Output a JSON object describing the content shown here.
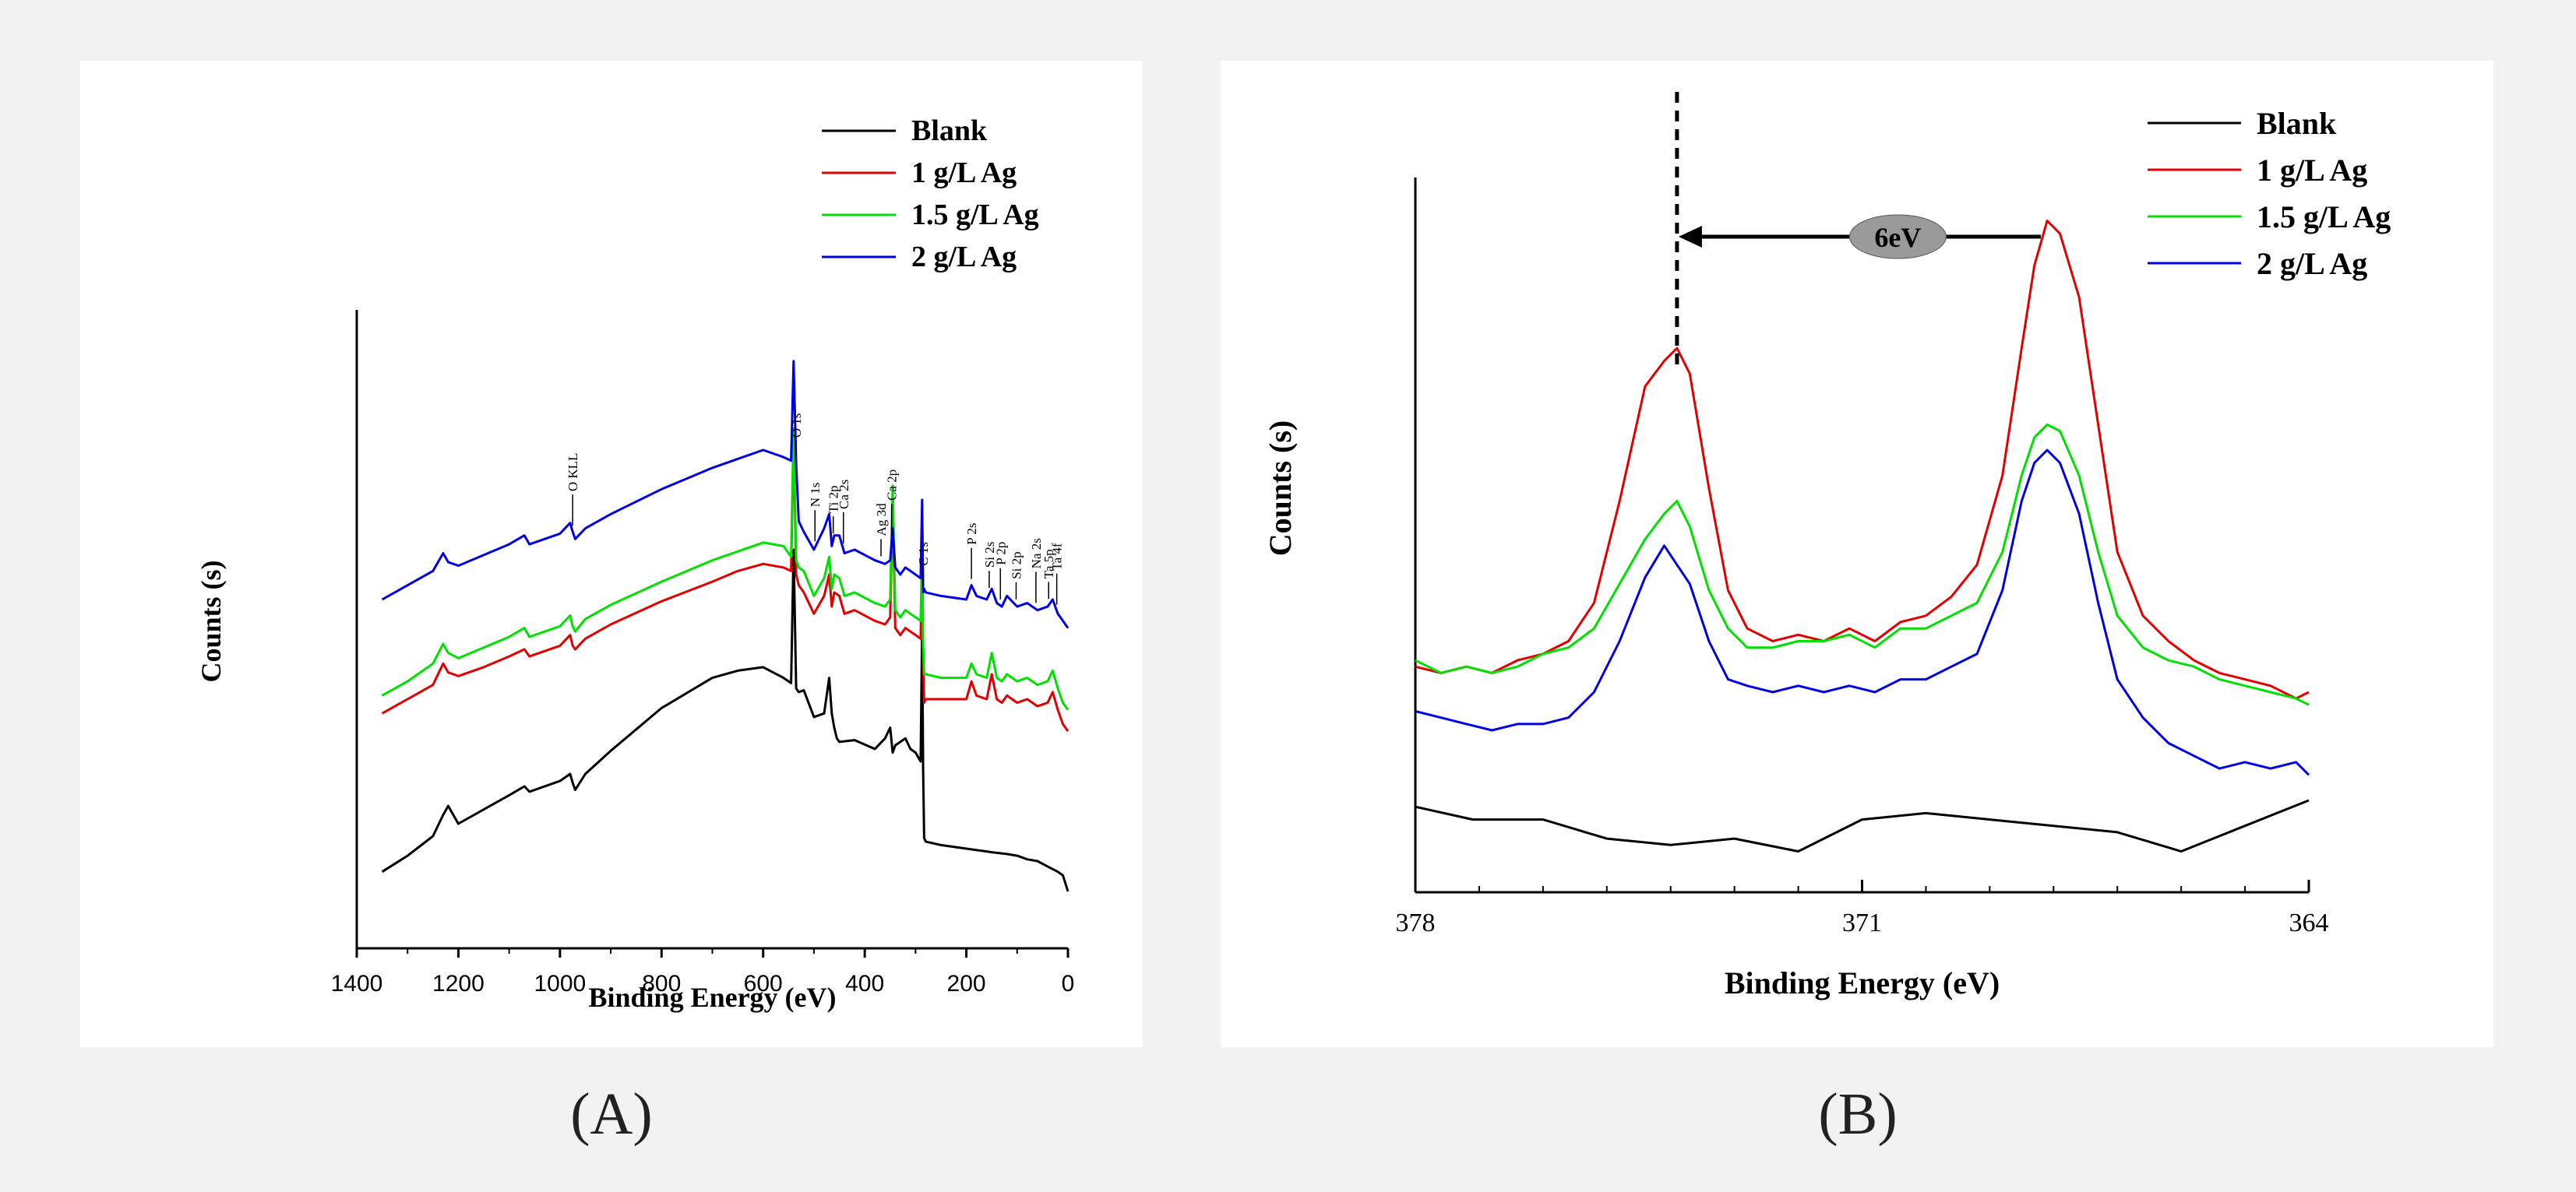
{
  "captions": {
    "a": "(A)",
    "b": "(B)"
  },
  "chart_data": [
    {
      "id": "A",
      "type": "line",
      "title": "",
      "xlabel": "Binding Energy (eV)",
      "ylabel": "Counts (s)",
      "xlim": [
        1400,
        0
      ],
      "xticks": [
        "1400",
        "1200",
        "1000",
        "800",
        "600",
        "400",
        "200",
        "0"
      ],
      "legend_position": "top-right",
      "series": [
        {
          "name": "Blank",
          "color": "#000000",
          "x": [
            1350,
            1300,
            1250,
            1230,
            1220,
            1200,
            1150,
            1100,
            1070,
            1060,
            1000,
            980,
            975,
            970,
            950,
            900,
            800,
            700,
            650,
            600,
            560,
            545,
            540,
            535,
            530,
            520,
            500,
            480,
            470,
            465,
            460,
            455,
            450,
            420,
            380,
            360,
            350,
            345,
            340,
            330,
            320,
            310,
            300,
            290,
            287,
            285,
            283,
            280,
            250,
            200,
            150,
            120,
            100,
            80,
            60,
            40,
            20,
            10,
            0
          ],
          "y": [
            0.215,
            0.26,
            0.315,
            0.375,
            0.4,
            0.35,
            0.39,
            0.43,
            0.455,
            0.44,
            0.47,
            0.49,
            0.465,
            0.445,
            0.49,
            0.555,
            0.675,
            0.76,
            0.78,
            0.79,
            0.76,
            0.745,
            1.12,
            0.73,
            0.72,
            0.725,
            0.65,
            0.66,
            0.76,
            0.66,
            0.62,
            0.59,
            0.58,
            0.585,
            0.56,
            0.59,
            0.62,
            0.55,
            0.57,
            0.58,
            0.59,
            0.56,
            0.55,
            0.525,
            0.9,
            0.5,
            0.31,
            0.3,
            0.29,
            0.28,
            0.27,
            0.265,
            0.26,
            0.25,
            0.245,
            0.23,
            0.215,
            0.205,
            0.16
          ]
        },
        {
          "name": "1 g/L Ag",
          "color": "#e00000",
          "x": [
            1350,
            1300,
            1250,
            1230,
            1220,
            1200,
            1150,
            1100,
            1070,
            1060,
            1000,
            980,
            975,
            970,
            950,
            900,
            800,
            700,
            650,
            600,
            560,
            545,
            540,
            535,
            530,
            520,
            500,
            480,
            470,
            465,
            460,
            450,
            440,
            420,
            380,
            360,
            350,
            345,
            340,
            330,
            320,
            310,
            300,
            290,
            287,
            285,
            283,
            280,
            250,
            200,
            190,
            180,
            160,
            150,
            140,
            130,
            120,
            100,
            80,
            60,
            40,
            30,
            20,
            10,
            0
          ],
          "y": [
            0.66,
            0.7,
            0.74,
            0.8,
            0.775,
            0.765,
            0.79,
            0.82,
            0.84,
            0.82,
            0.85,
            0.88,
            0.85,
            0.84,
            0.87,
            0.91,
            0.975,
            1.03,
            1.06,
            1.08,
            1.07,
            1.06,
            1.44,
            1.05,
            1.02,
            1.0,
            0.94,
            0.99,
            1.05,
            0.96,
            1.0,
            0.99,
            0.94,
            0.95,
            0.92,
            0.91,
            0.93,
            1.26,
            0.9,
            0.88,
            0.9,
            0.89,
            0.88,
            0.87,
            1.1,
            0.82,
            0.69,
            0.7,
            0.7,
            0.7,
            0.75,
            0.71,
            0.7,
            0.77,
            0.7,
            0.69,
            0.71,
            0.69,
            0.7,
            0.68,
            0.69,
            0.72,
            0.67,
            0.63,
            0.61
          ]
        },
        {
          "name": "1.5 g/L Ag",
          "color": "#00e000",
          "x": [
            1350,
            1300,
            1250,
            1230,
            1220,
            1200,
            1150,
            1100,
            1070,
            1060,
            1000,
            980,
            975,
            970,
            950,
            900,
            800,
            700,
            650,
            600,
            560,
            545,
            540,
            535,
            530,
            520,
            500,
            480,
            470,
            465,
            460,
            450,
            440,
            420,
            380,
            360,
            350,
            345,
            340,
            330,
            320,
            310,
            300,
            290,
            287,
            285,
            283,
            280,
            250,
            200,
            190,
            180,
            160,
            150,
            140,
            130,
            120,
            100,
            80,
            60,
            40,
            30,
            20,
            10,
            0
          ],
          "y": [
            0.71,
            0.75,
            0.8,
            0.855,
            0.83,
            0.815,
            0.845,
            0.875,
            0.9,
            0.875,
            0.905,
            0.935,
            0.905,
            0.89,
            0.925,
            0.965,
            1.03,
            1.09,
            1.115,
            1.14,
            1.13,
            1.1,
            1.46,
            1.09,
            1.07,
            1.06,
            0.99,
            1.04,
            1.1,
            1.01,
            1.05,
            1.04,
            0.99,
            1.0,
            0.97,
            0.96,
            0.98,
            1.3,
            0.95,
            0.93,
            0.95,
            0.94,
            0.93,
            0.92,
            1.14,
            0.85,
            0.77,
            0.77,
            0.76,
            0.76,
            0.8,
            0.77,
            0.76,
            0.83,
            0.76,
            0.75,
            0.77,
            0.75,
            0.76,
            0.74,
            0.75,
            0.78,
            0.73,
            0.69,
            0.67
          ]
        },
        {
          "name": "2 g/L Ag",
          "color": "#0000e0",
          "x": [
            1350,
            1300,
            1250,
            1230,
            1220,
            1200,
            1150,
            1100,
            1070,
            1060,
            1000,
            980,
            975,
            970,
            950,
            900,
            800,
            700,
            650,
            600,
            560,
            545,
            540,
            535,
            530,
            520,
            500,
            480,
            470,
            465,
            460,
            450,
            440,
            420,
            380,
            360,
            350,
            345,
            340,
            330,
            320,
            310,
            300,
            290,
            287,
            285,
            283,
            280,
            250,
            200,
            190,
            180,
            160,
            150,
            140,
            130,
            120,
            100,
            80,
            60,
            40,
            30,
            20,
            10,
            0
          ],
          "y": [
            0.98,
            1.02,
            1.06,
            1.11,
            1.085,
            1.075,
            1.105,
            1.135,
            1.16,
            1.135,
            1.165,
            1.195,
            1.17,
            1.15,
            1.18,
            1.22,
            1.29,
            1.35,
            1.375,
            1.4,
            1.38,
            1.37,
            1.65,
            1.36,
            1.2,
            1.17,
            1.12,
            1.18,
            1.22,
            1.13,
            1.16,
            1.16,
            1.11,
            1.12,
            1.09,
            1.08,
            1.09,
            1.18,
            1.07,
            1.05,
            1.07,
            1.06,
            1.05,
            1.04,
            1.26,
            1.0,
            1.01,
            1.0,
            0.99,
            0.98,
            1.02,
            0.99,
            0.98,
            1.01,
            0.97,
            0.96,
            0.99,
            0.96,
            0.97,
            0.95,
            0.96,
            0.98,
            0.94,
            0.92,
            0.9
          ]
        }
      ],
      "annotations": [
        {
          "text": "O KLL",
          "x": 975
        },
        {
          "text": "O 1s",
          "x": 535
        },
        {
          "text": "N 1s",
          "x": 498
        },
        {
          "text": "Ti 2p",
          "x": 462
        },
        {
          "text": "Ca 2s",
          "x": 442
        },
        {
          "text": "Ag 3d",
          "x": 368
        },
        {
          "text": "Ca 2p",
          "x": 347
        },
        {
          "text": "C 1s",
          "x": 285
        },
        {
          "text": "P 2s",
          "x": 190
        },
        {
          "text": "Si 2s",
          "x": 155
        },
        {
          "text": "P 2p",
          "x": 133
        },
        {
          "text": "Si 2p",
          "x": 102
        },
        {
          "text": "Na 2s",
          "x": 63
        },
        {
          "text": "Ta 5p",
          "x": 38
        },
        {
          "text": "Ta 4f",
          "x": 22
        }
      ]
    },
    {
      "id": "B",
      "type": "line",
      "title": "",
      "xlabel": "Binding Energy (eV)",
      "ylabel": "Counts (s)",
      "xlim": [
        378,
        364
      ],
      "xticks": [
        "378",
        "371",
        "364"
      ],
      "legend_position": "top-right",
      "annotation": {
        "text": "6eV",
        "from_x": 368.2,
        "to_x": 373.9,
        "dashed_x": 373.9
      },
      "series": [
        {
          "name": "Blank",
          "color": "#000000",
          "x": [
            378,
            377.1,
            376,
            375,
            374,
            373,
            372,
            371,
            370,
            369,
            368,
            367,
            366,
            365,
            364
          ],
          "y": [
            0.1,
            0.08,
            0.08,
            0.05,
            0.04,
            0.05,
            0.03,
            0.08,
            0.09,
            0.08,
            0.07,
            0.06,
            0.03,
            0.07,
            0.11
          ]
        },
        {
          "name": "1 g/L Ag",
          "color": "#e00000",
          "x": [
            378,
            377.6,
            377.2,
            376.8,
            376.4,
            376,
            375.6,
            375.2,
            374.8,
            374.4,
            374.1,
            373.9,
            373.7,
            373.4,
            373.1,
            372.8,
            372.4,
            372,
            371.6,
            371.2,
            370.8,
            370.4,
            370,
            369.6,
            369.2,
            368.8,
            368.5,
            368.3,
            368.1,
            367.9,
            367.6,
            367.3,
            367,
            366.6,
            366.2,
            365.8,
            365.4,
            365,
            364.6,
            364.2,
            364
          ],
          "y": [
            0.32,
            0.31,
            0.32,
            0.31,
            0.33,
            0.34,
            0.36,
            0.42,
            0.58,
            0.76,
            0.8,
            0.82,
            0.78,
            0.6,
            0.44,
            0.38,
            0.36,
            0.37,
            0.36,
            0.38,
            0.36,
            0.39,
            0.4,
            0.43,
            0.48,
            0.62,
            0.82,
            0.95,
            1.02,
            1.0,
            0.9,
            0.7,
            0.5,
            0.4,
            0.36,
            0.33,
            0.31,
            0.3,
            0.29,
            0.27,
            0.28
          ]
        },
        {
          "name": "1.5 g/L Ag",
          "color": "#00e000",
          "x": [
            378,
            377.6,
            377.2,
            376.8,
            376.4,
            376,
            375.6,
            375.2,
            374.8,
            374.4,
            374.1,
            373.9,
            373.7,
            373.4,
            373.1,
            372.8,
            372.4,
            372,
            371.6,
            371.2,
            370.8,
            370.4,
            370,
            369.6,
            369.2,
            368.8,
            368.5,
            368.3,
            368.1,
            367.9,
            367.6,
            367.3,
            367,
            366.6,
            366.2,
            365.8,
            365.4,
            365,
            364.6,
            364.2,
            364
          ],
          "y": [
            0.33,
            0.31,
            0.32,
            0.31,
            0.32,
            0.34,
            0.35,
            0.38,
            0.45,
            0.52,
            0.56,
            0.58,
            0.54,
            0.44,
            0.38,
            0.35,
            0.35,
            0.36,
            0.36,
            0.37,
            0.35,
            0.38,
            0.38,
            0.4,
            0.42,
            0.5,
            0.62,
            0.68,
            0.7,
            0.69,
            0.62,
            0.5,
            0.4,
            0.35,
            0.33,
            0.32,
            0.3,
            0.29,
            0.28,
            0.27,
            0.26
          ]
        },
        {
          "name": "2 g/L Ag",
          "color": "#0000e0",
          "x": [
            378,
            377.6,
            377.2,
            376.8,
            376.4,
            376,
            375.6,
            375.2,
            374.8,
            374.4,
            374.1,
            373.9,
            373.7,
            373.4,
            373.1,
            372.8,
            372.4,
            372,
            371.6,
            371.2,
            370.8,
            370.4,
            370,
            369.6,
            369.2,
            368.8,
            368.5,
            368.3,
            368.1,
            367.9,
            367.6,
            367.3,
            367,
            366.6,
            366.2,
            365.8,
            365.4,
            365,
            364.6,
            364.2,
            364
          ],
          "y": [
            0.25,
            0.24,
            0.23,
            0.22,
            0.23,
            0.23,
            0.24,
            0.28,
            0.36,
            0.46,
            0.51,
            0.48,
            0.45,
            0.36,
            0.3,
            0.29,
            0.28,
            0.29,
            0.28,
            0.29,
            0.28,
            0.3,
            0.3,
            0.32,
            0.34,
            0.44,
            0.58,
            0.64,
            0.66,
            0.64,
            0.56,
            0.42,
            0.3,
            0.24,
            0.2,
            0.18,
            0.16,
            0.17,
            0.16,
            0.17,
            0.15
          ]
        }
      ]
    }
  ]
}
